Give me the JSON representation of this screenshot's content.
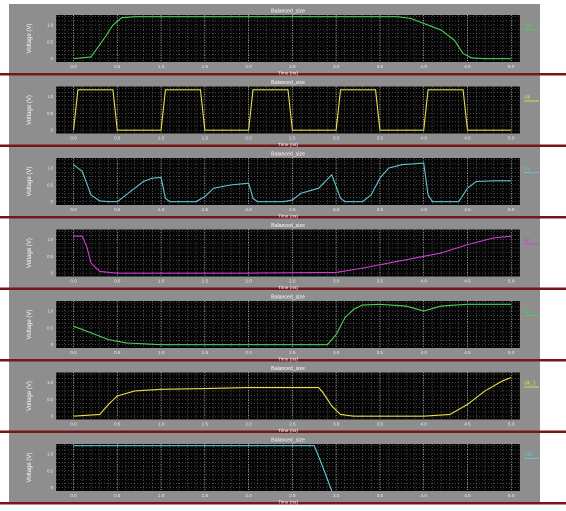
{
  "chart_data": [
    {
      "type": "line",
      "title": "Balanced_size",
      "xlabel": "Time (ns)",
      "ylabel": "Voltage (V)",
      "xlim": [
        -0.2,
        5.1
      ],
      "ylim": [
        -0.1,
        1.3
      ],
      "xticks": [
        "0.0",
        "0.5",
        "1.0",
        "1.5",
        "2.0",
        "2.5",
        "3.0",
        "3.5",
        "4.0",
        "4.5",
        "5.0"
      ],
      "yticks": [
        "0",
        "0.5",
        "1.0"
      ],
      "series": [
        {
          "name": "out",
          "color": "#4cd15a",
          "x": [
            0.0,
            0.2,
            0.35,
            0.45,
            0.55,
            0.7,
            1.0,
            2.0,
            3.0,
            3.7,
            3.85,
            4.0,
            4.2,
            4.35,
            4.45,
            4.55,
            4.7,
            5.0
          ],
          "y": [
            0.0,
            0.05,
            0.6,
            1.0,
            1.22,
            1.25,
            1.25,
            1.25,
            1.25,
            1.25,
            1.2,
            1.05,
            0.85,
            0.55,
            0.15,
            0.02,
            0.0,
            0.0
          ]
        }
      ]
    },
    {
      "type": "line",
      "title": "Balanced_size",
      "xlabel": "Time (ns)",
      "ylabel": "Voltage (V)",
      "xlim": [
        -0.2,
        5.1
      ],
      "ylim": [
        -0.1,
        1.3
      ],
      "xticks": [
        "0.0",
        "0.5",
        "1.0",
        "1.5",
        "2.0",
        "2.5",
        "3.0",
        "3.5",
        "4.0",
        "4.5",
        "5.0"
      ],
      "yticks": [
        "0",
        "0.5",
        "1.0"
      ],
      "series": [
        {
          "name": "clk",
          "color": "#e8e04a",
          "x": [
            0.0,
            0.05,
            0.45,
            0.5,
            1.0,
            1.05,
            1.45,
            1.5,
            2.0,
            2.05,
            2.45,
            2.5,
            3.0,
            3.05,
            3.45,
            3.5,
            4.0,
            4.05,
            4.45,
            4.5,
            5.0
          ],
          "y": [
            0.0,
            1.2,
            1.2,
            0.0,
            0.0,
            1.2,
            1.2,
            0.0,
            0.0,
            1.2,
            1.2,
            0.0,
            0.0,
            1.2,
            1.2,
            0.0,
            0.0,
            1.2,
            1.2,
            0.0,
            0.0
          ]
        }
      ]
    },
    {
      "type": "line",
      "title": "Balanced_size",
      "xlabel": "Time (ns)",
      "ylabel": "Voltage (V)",
      "xlim": [
        -0.2,
        5.1
      ],
      "ylim": [
        -0.1,
        1.3
      ],
      "xticks": [
        "0.0",
        "0.5",
        "1.0",
        "1.5",
        "2.0",
        "2.5",
        "3.0",
        "3.5",
        "4.0",
        "4.5",
        "5.0"
      ],
      "yticks": [
        "0",
        "0.5",
        "1.0"
      ],
      "series": [
        {
          "name": "n1",
          "color": "#5fc8d6",
          "x": [
            0.0,
            0.1,
            0.2,
            0.3,
            0.4,
            0.5,
            0.6,
            0.8,
            0.9,
            1.0,
            1.05,
            1.1,
            1.4,
            1.5,
            1.6,
            1.8,
            2.0,
            2.05,
            2.1,
            2.4,
            2.5,
            2.6,
            2.8,
            2.95,
            3.05,
            3.1,
            3.3,
            3.4,
            3.5,
            3.6,
            3.75,
            4.0,
            4.05,
            4.1,
            4.4,
            4.5,
            4.6,
            4.8,
            5.0
          ],
          "y": [
            1.1,
            0.9,
            0.2,
            0.02,
            0.0,
            0.0,
            0.2,
            0.6,
            0.7,
            0.72,
            0.1,
            0.0,
            0.0,
            0.15,
            0.4,
            0.5,
            0.55,
            0.1,
            0.0,
            0.0,
            0.05,
            0.25,
            0.4,
            0.8,
            0.1,
            0.0,
            0.0,
            0.2,
            0.7,
            1.0,
            1.1,
            1.15,
            0.2,
            0.0,
            0.0,
            0.4,
            0.6,
            0.62,
            0.62
          ]
        }
      ]
    },
    {
      "type": "line",
      "title": "Balanced_size",
      "xlabel": "Time (ns)",
      "ylabel": "Voltage (V)",
      "xlim": [
        -0.2,
        5.1
      ],
      "ylim": [
        -0.1,
        1.3
      ],
      "xticks": [
        "0.0",
        "0.5",
        "1.0",
        "1.5",
        "2.0",
        "2.5",
        "3.0",
        "3.5",
        "4.0",
        "4.5",
        "5.0"
      ],
      "yticks": [
        "0",
        "0.5",
        "1.0"
      ],
      "series": [
        {
          "name": "n2",
          "color": "#d43bd6",
          "x": [
            0.0,
            0.1,
            0.15,
            0.2,
            0.3,
            0.5,
            1.0,
            2.0,
            3.0,
            3.3,
            3.6,
            3.9,
            4.2,
            4.5,
            4.8,
            5.0
          ],
          "y": [
            1.1,
            1.1,
            0.8,
            0.3,
            0.05,
            0.0,
            0.0,
            0.0,
            0.02,
            0.15,
            0.3,
            0.45,
            0.6,
            0.85,
            1.05,
            1.1
          ]
        }
      ]
    },
    {
      "type": "line",
      "title": "Balanced_size",
      "xlabel": "Time (ns)",
      "ylabel": "Voltage (V)",
      "xlim": [
        -0.2,
        5.1
      ],
      "ylim": [
        -0.1,
        1.3
      ],
      "xticks": [
        "0.0",
        "0.5",
        "1.0",
        "1.5",
        "2.0",
        "2.5",
        "3.0",
        "3.5",
        "4.0",
        "4.5",
        "5.0"
      ],
      "yticks": [
        "0",
        "0.5",
        "1.0"
      ],
      "series": [
        {
          "name": "n3",
          "color": "#4cd15a",
          "x": [
            0.0,
            0.2,
            0.4,
            0.6,
            1.0,
            2.0,
            2.9,
            3.0,
            3.1,
            3.2,
            3.3,
            3.5,
            3.8,
            4.0,
            4.2,
            4.5,
            5.0
          ],
          "y": [
            0.55,
            0.35,
            0.15,
            0.05,
            0.0,
            0.0,
            0.0,
            0.3,
            0.8,
            1.05,
            1.18,
            1.2,
            1.15,
            1.0,
            1.15,
            1.2,
            1.2
          ]
        }
      ]
    },
    {
      "type": "line",
      "title": "Balanced_size",
      "xlabel": "Time (ns)",
      "ylabel": "Voltage (V)",
      "xlim": [
        -0.2,
        5.1
      ],
      "ylim": [
        -0.1,
        1.3
      ],
      "xticks": [
        "0.0",
        "0.5",
        "1.0",
        "1.5",
        "2.0",
        "2.5",
        "3.0",
        "3.5",
        "4.0",
        "4.5",
        "5.0"
      ],
      "yticks": [
        "0",
        "0.5",
        "1.0"
      ],
      "series": [
        {
          "name": "clk_1",
          "color": "#e8e04a",
          "x": [
            0.0,
            0.3,
            0.4,
            0.5,
            0.7,
            1.0,
            1.5,
            2.0,
            2.5,
            2.8,
            2.85,
            2.95,
            3.05,
            3.2,
            4.0,
            4.3,
            4.5,
            4.7,
            4.9,
            5.0
          ],
          "y": [
            0.0,
            0.05,
            0.35,
            0.6,
            0.75,
            0.8,
            0.82,
            0.85,
            0.85,
            0.85,
            0.7,
            0.3,
            0.05,
            0.0,
            0.0,
            0.05,
            0.35,
            0.75,
            1.05,
            1.15
          ]
        }
      ]
    },
    {
      "type": "line",
      "title": "Balanced_size",
      "xlabel": "Time (ns)",
      "ylabel": "Voltage (V)",
      "xlim": [
        -0.2,
        5.1
      ],
      "ylim": [
        -0.1,
        1.3
      ],
      "xticks": [
        "0.0",
        "0.5",
        "1.0",
        "1.5",
        "2.0",
        "2.5",
        "3.0",
        "3.5",
        "4.0",
        "4.5",
        "5.0"
      ],
      "yticks": [
        "0",
        "0.5",
        "1.0"
      ],
      "series": [
        {
          "name": "clkb",
          "color": "#5fc8d6",
          "x": [
            0.0,
            1.0,
            2.0,
            2.75,
            2.85,
            2.95
          ],
          "y": [
            1.25,
            1.25,
            1.25,
            1.25,
            0.6,
            -0.1
          ]
        }
      ]
    }
  ]
}
